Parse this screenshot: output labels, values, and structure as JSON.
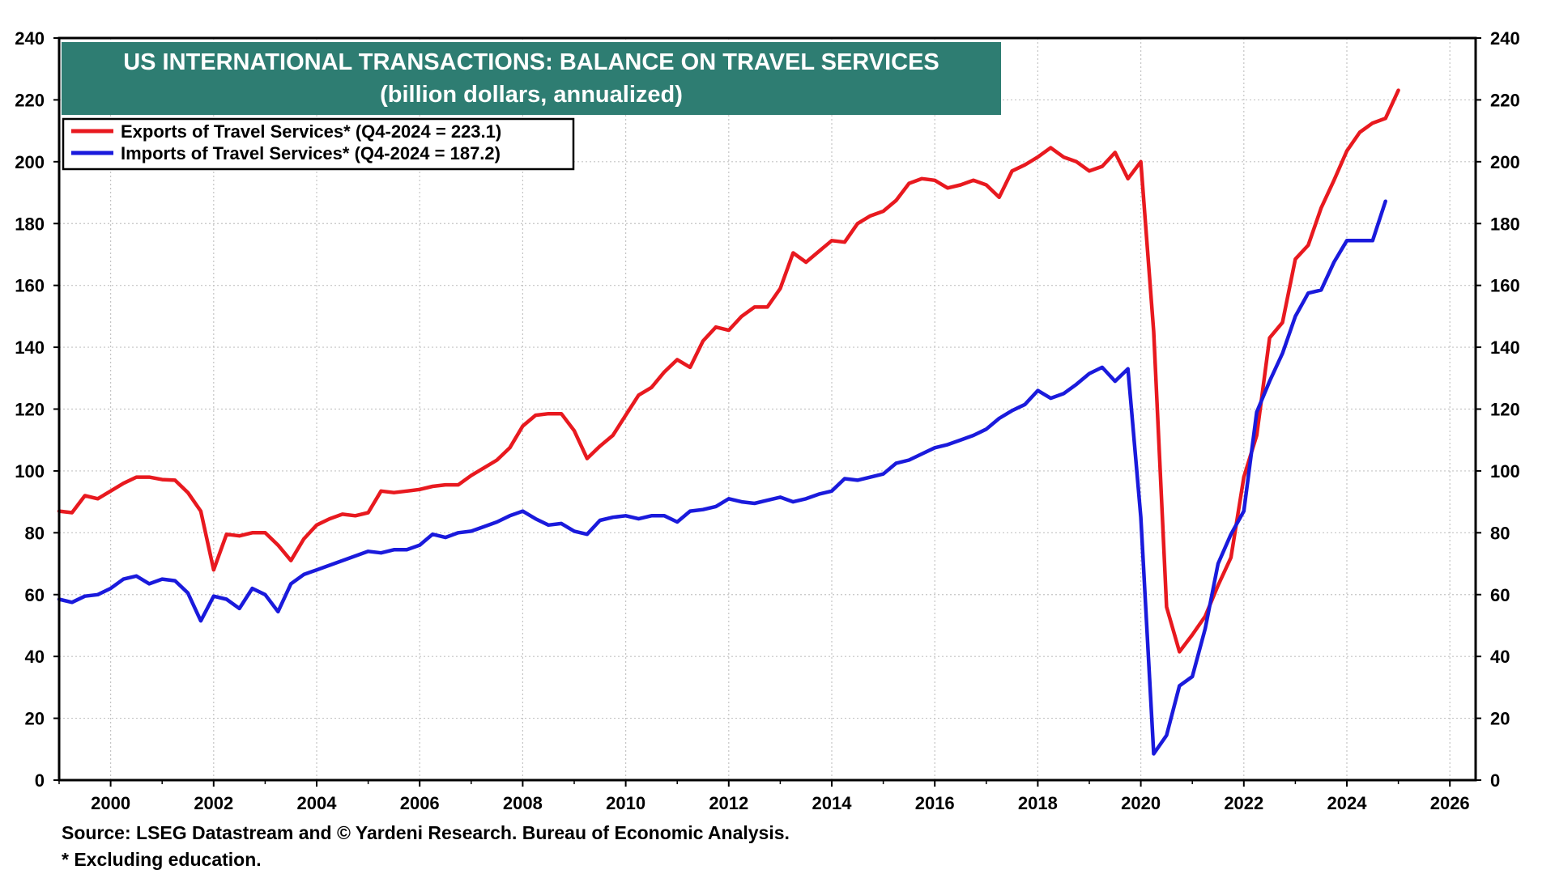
{
  "chart_data": {
    "type": "line",
    "title": "US INTERNATIONAL TRANSACTIONS: BALANCE ON TRAVEL SERVICES",
    "subtitle": "(billion dollars, annualized)",
    "xlim": [
      1999.0,
      2026.5
    ],
    "ylim": [
      0,
      240
    ],
    "x_ticks": [
      2000,
      2002,
      2004,
      2006,
      2008,
      2010,
      2012,
      2014,
      2016,
      2018,
      2020,
      2022,
      2024,
      2026
    ],
    "y_ticks": [
      0,
      20,
      40,
      60,
      80,
      100,
      120,
      140,
      160,
      180,
      200,
      220,
      240
    ],
    "grid": true,
    "legend_position": "top-left",
    "colors": {
      "title_bg": "#2e7d72",
      "exports": "#e8191f",
      "imports": "#1a1adc"
    },
    "series": [
      {
        "name": "Exports of Travel Services* (Q4-2024 = 223.1)",
        "color": "#e8191f",
        "points": [
          [
            1999.0,
            87.0
          ],
          [
            1999.25,
            86.5
          ],
          [
            1999.5,
            92.0
          ],
          [
            1999.75,
            91.0
          ],
          [
            2000.0,
            93.5
          ],
          [
            2000.25,
            96.0
          ],
          [
            2000.5,
            98.0
          ],
          [
            2000.75,
            98.0
          ],
          [
            2001.0,
            97.2
          ],
          [
            2001.25,
            97.0
          ],
          [
            2001.5,
            93.0
          ],
          [
            2001.75,
            87.0
          ],
          [
            2002.0,
            68.0
          ],
          [
            2002.25,
            79.5
          ],
          [
            2002.5,
            79.0
          ],
          [
            2002.75,
            80.0
          ],
          [
            2003.0,
            80.0
          ],
          [
            2003.25,
            76.0
          ],
          [
            2003.5,
            71.0
          ],
          [
            2003.75,
            78.0
          ],
          [
            2004.0,
            82.5
          ],
          [
            2004.25,
            84.5
          ],
          [
            2004.5,
            86.0
          ],
          [
            2004.75,
            85.5
          ],
          [
            2005.0,
            86.5
          ],
          [
            2005.25,
            93.5
          ],
          [
            2005.5,
            93.0
          ],
          [
            2005.75,
            93.5
          ],
          [
            2006.0,
            94.0
          ],
          [
            2006.25,
            95.0
          ],
          [
            2006.5,
            95.5
          ],
          [
            2006.75,
            95.5
          ],
          [
            2007.0,
            98.5
          ],
          [
            2007.25,
            101.0
          ],
          [
            2007.5,
            103.5
          ],
          [
            2007.75,
            107.5
          ],
          [
            2008.0,
            114.5
          ],
          [
            2008.25,
            118.0
          ],
          [
            2008.5,
            118.5
          ],
          [
            2008.75,
            118.5
          ],
          [
            2009.0,
            113.0
          ],
          [
            2009.25,
            104.0
          ],
          [
            2009.5,
            108.0
          ],
          [
            2009.75,
            111.5
          ],
          [
            2010.0,
            118.0
          ],
          [
            2010.25,
            124.5
          ],
          [
            2010.5,
            127.0
          ],
          [
            2010.75,
            132.0
          ],
          [
            2011.0,
            136.0
          ],
          [
            2011.25,
            133.5
          ],
          [
            2011.5,
            142.0
          ],
          [
            2011.75,
            146.5
          ],
          [
            2012.0,
            145.5
          ],
          [
            2012.25,
            150.0
          ],
          [
            2012.5,
            153.0
          ],
          [
            2012.75,
            153.0
          ],
          [
            2013.0,
            159.0
          ],
          [
            2013.25,
            170.5
          ],
          [
            2013.5,
            167.5
          ],
          [
            2013.75,
            171.0
          ],
          [
            2014.0,
            174.5
          ],
          [
            2014.25,
            174.0
          ],
          [
            2014.5,
            180.0
          ],
          [
            2014.75,
            182.5
          ],
          [
            2015.0,
            184.0
          ],
          [
            2015.25,
            187.5
          ],
          [
            2015.5,
            193.0
          ],
          [
            2015.75,
            194.5
          ],
          [
            2016.0,
            194.0
          ],
          [
            2016.25,
            191.5
          ],
          [
            2016.5,
            192.5
          ],
          [
            2016.75,
            194.0
          ],
          [
            2017.0,
            192.5
          ],
          [
            2017.25,
            188.5
          ],
          [
            2017.5,
            197.0
          ],
          [
            2017.75,
            199.0
          ],
          [
            2018.0,
            201.5
          ],
          [
            2018.25,
            204.5
          ],
          [
            2018.5,
            201.5
          ],
          [
            2018.75,
            200.0
          ],
          [
            2019.0,
            197.0
          ],
          [
            2019.25,
            198.5
          ],
          [
            2019.5,
            203.0
          ],
          [
            2019.75,
            194.5
          ],
          [
            2020.0,
            200.0
          ],
          [
            2020.25,
            145.0
          ],
          [
            2020.5,
            56.0
          ],
          [
            2020.75,
            41.5
          ],
          [
            2021.0,
            47.0
          ],
          [
            2021.25,
            53.0
          ],
          [
            2021.5,
            63.0
          ],
          [
            2021.75,
            72.0
          ],
          [
            2022.0,
            98.0
          ],
          [
            2022.25,
            111.5
          ],
          [
            2022.5,
            143.0
          ],
          [
            2022.75,
            148.0
          ],
          [
            2023.0,
            168.5
          ],
          [
            2023.25,
            173.0
          ],
          [
            2023.5,
            185.0
          ],
          [
            2023.75,
            194.0
          ],
          [
            2024.0,
            203.5
          ],
          [
            2024.25,
            209.5
          ],
          [
            2024.5,
            212.5
          ],
          [
            2024.75,
            214.0
          ],
          [
            2025.0,
            223.1
          ]
        ]
      },
      {
        "name": "Imports of Travel Services* (Q4-2024 = 187.2)",
        "color": "#1a1adc",
        "points": [
          [
            1999.0,
            58.5
          ],
          [
            1999.25,
            57.5
          ],
          [
            1999.5,
            59.5
          ],
          [
            1999.75,
            60.0
          ],
          [
            2000.0,
            62.0
          ],
          [
            2000.25,
            65.0
          ],
          [
            2000.5,
            66.0
          ],
          [
            2000.75,
            63.5
          ],
          [
            2001.0,
            65.0
          ],
          [
            2001.25,
            64.5
          ],
          [
            2001.5,
            60.5
          ],
          [
            2001.75,
            51.5
          ],
          [
            2002.0,
            59.5
          ],
          [
            2002.25,
            58.5
          ],
          [
            2002.5,
            55.5
          ],
          [
            2002.75,
            62.0
          ],
          [
            2003.0,
            60.0
          ],
          [
            2003.25,
            54.5
          ],
          [
            2003.5,
            63.5
          ],
          [
            2003.75,
            66.5
          ],
          [
            2004.0,
            68.0
          ],
          [
            2004.25,
            69.5
          ],
          [
            2004.5,
            71.0
          ],
          [
            2004.75,
            72.5
          ],
          [
            2005.0,
            74.0
          ],
          [
            2005.25,
            73.5
          ],
          [
            2005.5,
            74.5
          ],
          [
            2005.75,
            74.5
          ],
          [
            2006.0,
            76.0
          ],
          [
            2006.25,
            79.5
          ],
          [
            2006.5,
            78.5
          ],
          [
            2006.75,
            80.0
          ],
          [
            2007.0,
            80.5
          ],
          [
            2007.25,
            82.0
          ],
          [
            2007.5,
            83.5
          ],
          [
            2007.75,
            85.5
          ],
          [
            2008.0,
            87.0
          ],
          [
            2008.25,
            84.5
          ],
          [
            2008.5,
            82.5
          ],
          [
            2008.75,
            83.0
          ],
          [
            2009.0,
            80.5
          ],
          [
            2009.25,
            79.5
          ],
          [
            2009.5,
            84.0
          ],
          [
            2009.75,
            85.0
          ],
          [
            2010.0,
            85.5
          ],
          [
            2010.25,
            84.5
          ],
          [
            2010.5,
            85.5
          ],
          [
            2010.75,
            85.5
          ],
          [
            2011.0,
            83.5
          ],
          [
            2011.25,
            87.0
          ],
          [
            2011.5,
            87.5
          ],
          [
            2011.75,
            88.5
          ],
          [
            2012.0,
            91.0
          ],
          [
            2012.25,
            90.0
          ],
          [
            2012.5,
            89.5
          ],
          [
            2012.75,
            90.5
          ],
          [
            2013.0,
            91.5
          ],
          [
            2013.25,
            90.0
          ],
          [
            2013.5,
            91.0
          ],
          [
            2013.75,
            92.5
          ],
          [
            2014.0,
            93.5
          ],
          [
            2014.25,
            97.5
          ],
          [
            2014.5,
            97.0
          ],
          [
            2014.75,
            98.0
          ],
          [
            2015.0,
            99.0
          ],
          [
            2015.25,
            102.5
          ],
          [
            2015.5,
            103.5
          ],
          [
            2015.75,
            105.5
          ],
          [
            2016.0,
            107.5
          ],
          [
            2016.25,
            108.5
          ],
          [
            2016.5,
            110.0
          ],
          [
            2016.75,
            111.5
          ],
          [
            2017.0,
            113.5
          ],
          [
            2017.25,
            117.0
          ],
          [
            2017.5,
            119.5
          ],
          [
            2017.75,
            121.5
          ],
          [
            2018.0,
            126.0
          ],
          [
            2018.25,
            123.5
          ],
          [
            2018.5,
            125.0
          ],
          [
            2018.75,
            128.0
          ],
          [
            2019.0,
            131.5
          ],
          [
            2019.25,
            133.5
          ],
          [
            2019.5,
            129.0
          ],
          [
            2019.75,
            133.0
          ],
          [
            2020.0,
            85.0
          ],
          [
            2020.25,
            8.5
          ],
          [
            2020.5,
            14.5
          ],
          [
            2020.75,
            30.5
          ],
          [
            2021.0,
            33.5
          ],
          [
            2021.25,
            49.0
          ],
          [
            2021.5,
            70.0
          ],
          [
            2021.75,
            79.5
          ],
          [
            2022.0,
            87.0
          ],
          [
            2022.25,
            119.0
          ],
          [
            2022.5,
            129.0
          ],
          [
            2022.75,
            138.0
          ],
          [
            2023.0,
            150.0
          ],
          [
            2023.25,
            157.5
          ],
          [
            2023.5,
            158.5
          ],
          [
            2023.75,
            167.5
          ],
          [
            2024.0,
            174.5
          ],
          [
            2024.25,
            174.5
          ],
          [
            2024.5,
            174.5
          ],
          [
            2024.75,
            187.2
          ]
        ]
      }
    ]
  },
  "footer": {
    "source": "Source: LSEG Datastream and © Yardeni Research. Bureau of Economic Analysis.",
    "note": "* Excluding education."
  }
}
